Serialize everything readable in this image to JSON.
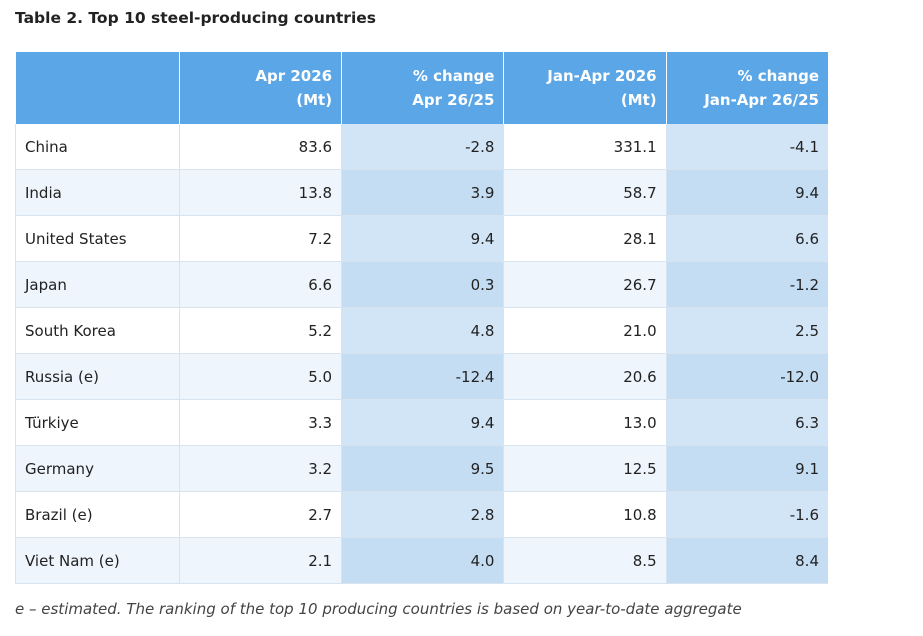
{
  "title": "Table 2. Top 10 steel-producing countries",
  "table": {
    "columns": [
      [
        "Apr 2026",
        "(Mt)"
      ],
      [
        "% change",
        "Apr 26/25"
      ],
      [
        "Jan-Apr 2026",
        "(Mt)"
      ],
      [
        "% change",
        "Jan-Apr 26/25"
      ]
    ],
    "rows": [
      [
        "China",
        "83.6",
        "-2.8",
        "331.1",
        "-4.1"
      ],
      [
        "India",
        "13.8",
        "3.9",
        "58.7",
        "9.4"
      ],
      [
        "United States",
        "7.2",
        "9.4",
        "28.1",
        "6.6"
      ],
      [
        "Japan",
        "6.6",
        "0.3",
        "26.7",
        "-1.2"
      ],
      [
        "South Korea",
        "5.2",
        "4.8",
        "21.0",
        "2.5"
      ],
      [
        "Russia (e)",
        "5.0",
        "-12.4",
        "20.6",
        "-12.0"
      ],
      [
        "Türkiye",
        "3.3",
        "9.4",
        "13.0",
        "6.3"
      ],
      [
        "Germany",
        "3.2",
        "9.5",
        "12.5",
        "9.1"
      ],
      [
        "Brazil (e)",
        "2.7",
        "2.8",
        "10.8",
        "-1.6"
      ],
      [
        "Viet Nam (e)",
        "2.1",
        "4.0",
        "8.5",
        "8.4"
      ]
    ]
  },
  "footnote": "e – estimated. The ranking of the top 10 producing countries is based on year-to-date aggregate"
}
